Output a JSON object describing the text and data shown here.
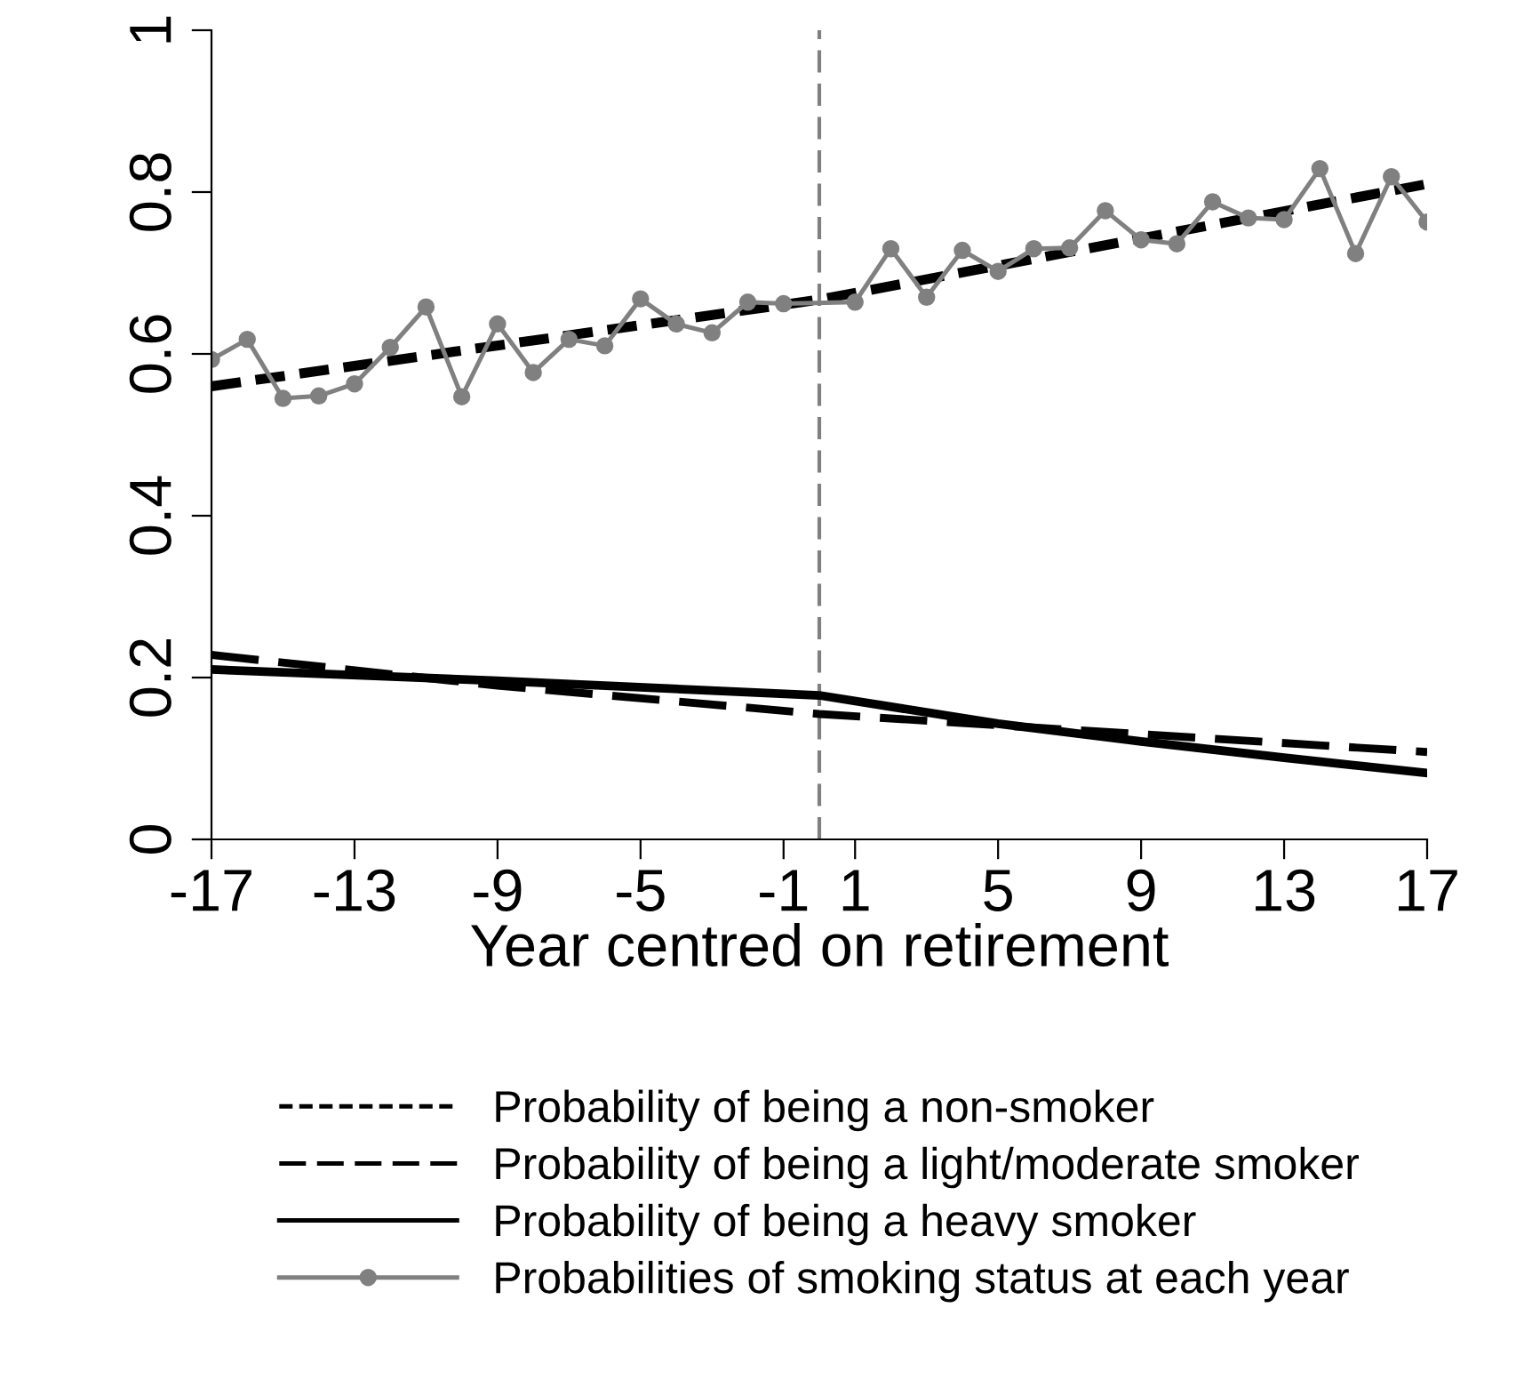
{
  "chart_data": {
    "type": "line",
    "xlabel": "Year centred on retirement",
    "xlim": [
      -17,
      17
    ],
    "xticks": [
      -17,
      -13,
      -9,
      -5,
      -1,
      1,
      5,
      9,
      13,
      17
    ],
    "ylim": [
      0,
      1
    ],
    "yticks": [
      0,
      0.2,
      0.4,
      0.6,
      0.8,
      1
    ],
    "grid": false,
    "legend": "bottom",
    "ref_lines": [
      {
        "axis": "x",
        "value": 0,
        "color": "#808080",
        "line_style": "dashed"
      }
    ],
    "series": [
      {
        "name": "Probability of being a non-smoker",
        "color": "#000000",
        "line_style": "dashed",
        "marker": "none",
        "x": [
          -17,
          0,
          17
        ],
        "values": [
          0.56,
          0.667,
          0.81
        ]
      },
      {
        "name": "Probability of being a light/moderate smoker",
        "color": "#000000",
        "line_style": "dashed",
        "marker": "none",
        "x": [
          -17,
          -9,
          0,
          5,
          17
        ],
        "values": [
          0.228,
          0.19,
          0.155,
          0.141,
          0.108
        ]
      },
      {
        "name": "Probability of being a heavy smoker",
        "color": "#000000",
        "line_style": "solid",
        "marker": "none",
        "x": [
          -17,
          -9,
          0,
          5,
          9,
          13,
          17
        ],
        "values": [
          0.21,
          0.196,
          0.178,
          0.143,
          0.121,
          0.101,
          0.082
        ]
      },
      {
        "name": "Probabilities of smoking status at each year",
        "color": "#808080",
        "line_style": "solid",
        "marker": "circle",
        "x": [
          -17,
          -16,
          -15,
          -14,
          -13,
          -12,
          -11,
          -10,
          -9,
          -8,
          -7,
          -6,
          -5,
          -4,
          -3,
          -2,
          -1,
          1,
          2,
          3,
          4,
          5,
          6,
          7,
          8,
          9,
          10,
          11,
          12,
          13,
          14,
          15,
          16,
          17
        ],
        "values": [
          0.593,
          0.618,
          0.545,
          0.548,
          0.563,
          0.608,
          0.658,
          0.547,
          0.637,
          0.577,
          0.618,
          0.61,
          0.668,
          0.637,
          0.626,
          0.664,
          0.662,
          0.664,
          0.73,
          0.67,
          0.728,
          0.702,
          0.73,
          0.731,
          0.777,
          0.741,
          0.736,
          0.788,
          0.768,
          0.766,
          0.829,
          0.724,
          0.819,
          0.763
        ]
      }
    ]
  }
}
